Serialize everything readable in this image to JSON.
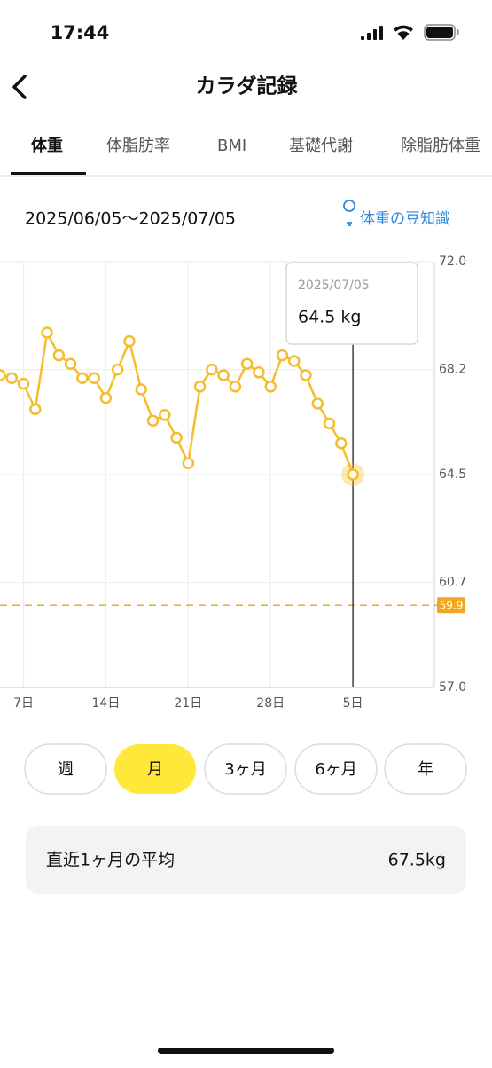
{
  "status_bar": {
    "time": "17:44"
  },
  "header": {
    "title": "カラダ記録"
  },
  "tabs": [
    "体重",
    "体脂肪率",
    "BMI",
    "基礎代謝",
    "除脂肪体重"
  ],
  "active_tab": 0,
  "date_range": "2025/06/05〜2025/07/05",
  "tip_link": "体重の豆知識",
  "chart_data": {
    "type": "line",
    "categories": [
      null,
      null,
      "7日",
      null,
      null,
      null,
      null,
      null,
      null,
      "14日",
      null,
      null,
      null,
      null,
      null,
      null,
      "21日",
      null,
      null,
      null,
      null,
      null,
      null,
      "28日",
      null,
      null,
      null,
      null,
      null,
      null,
      "5日"
    ],
    "values": [
      68.0,
      67.9,
      67.7,
      66.8,
      69.5,
      68.7,
      68.4,
      67.9,
      67.9,
      67.2,
      68.2,
      69.2,
      67.5,
      66.4,
      66.6,
      65.8,
      64.9,
      67.6,
      68.2,
      68.0,
      67.6,
      68.4,
      68.1,
      67.6,
      68.7,
      68.5,
      68.0,
      67.0,
      66.3,
      65.6,
      64.5
    ],
    "color": "#f5bd2c",
    "ylim": [
      57,
      72
    ],
    "yticks": [
      {
        "value": 57,
        "label": "57.0"
      },
      60.7,
      64.5,
      68.2,
      {
        "value": 72,
        "label": "72.0"
      }
    ],
    "grid": true,
    "target": 59.9,
    "target_color": "#f0a81e",
    "tooltip": {
      "date": "2025/07/05",
      "label": "64.5 kg"
    }
  },
  "periods": [
    "週",
    "月",
    "3ヶ月",
    "6ヶ月",
    "年"
  ],
  "active_period": 1,
  "average": {
    "label": "直近1ヶ月の平均",
    "value": "67.5kg"
  }
}
